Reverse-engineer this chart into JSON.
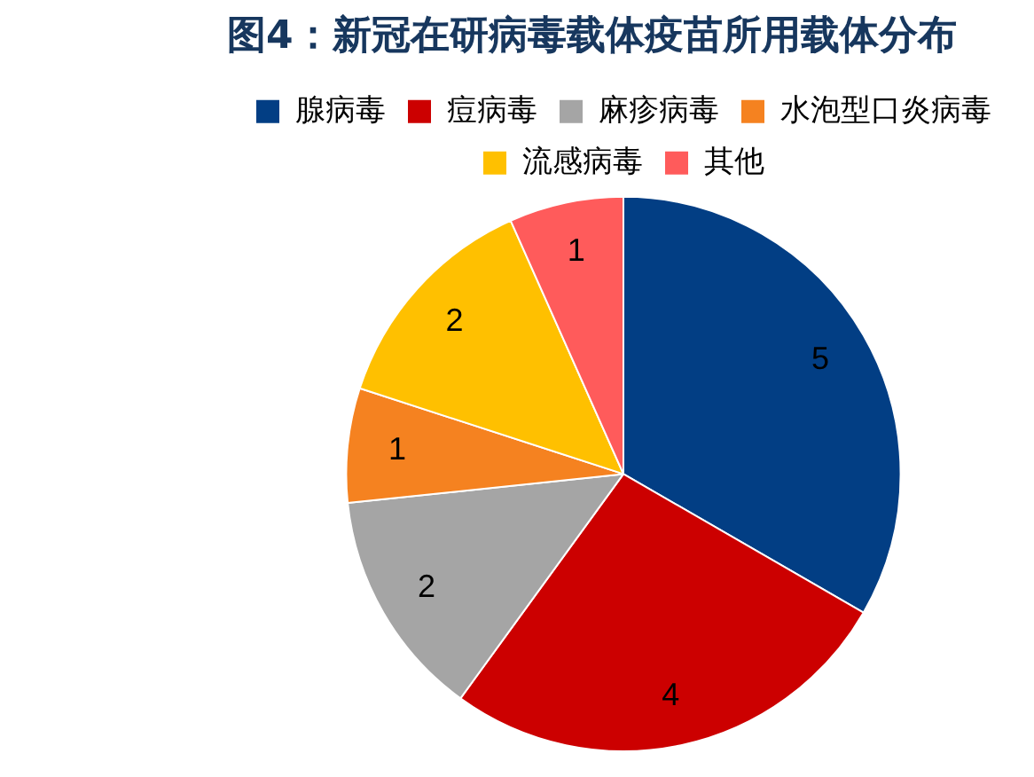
{
  "chart_data": {
    "type": "pie",
    "title": "图4：新冠在研病毒载体疫苗所用载体分布",
    "categories": [
      "腺病毒",
      "痘病毒",
      "麻疹病毒",
      "水泡型口炎病毒",
      "流感病毒",
      "其他"
    ],
    "values": [
      5,
      4,
      2,
      1,
      2,
      1
    ],
    "colors": [
      "#023e84",
      "#cc0000",
      "#a5a5a5",
      "#f58220",
      "#ffc000",
      "#ff5b5b"
    ],
    "data_labels": true,
    "legend": "top"
  }
}
